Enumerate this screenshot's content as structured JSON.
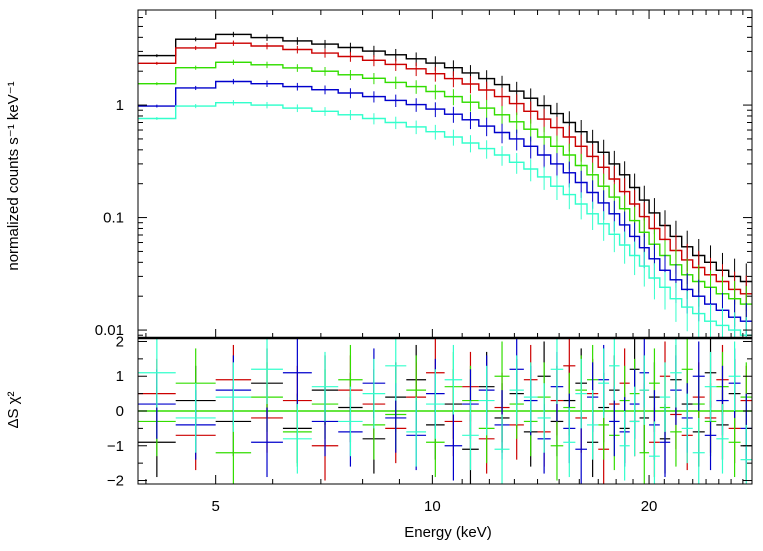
{
  "chart_data": {
    "type": "line",
    "xscale": "log",
    "xlim": [
      3.9,
      27.8
    ],
    "xlabel": "Energy (keV)",
    "xticks": [
      {
        "value": 5,
        "label": "5"
      },
      {
        "value": 10,
        "label": "10"
      },
      {
        "value": 20,
        "label": "20"
      }
    ],
    "energy_bins": [
      [
        3.9,
        4.4
      ],
      [
        4.4,
        5.0
      ],
      [
        5.0,
        5.6
      ],
      [
        5.6,
        6.2
      ],
      [
        6.2,
        6.8
      ],
      [
        6.8,
        7.4
      ],
      [
        7.4,
        8.0
      ],
      [
        8.0,
        8.6
      ],
      [
        8.6,
        9.2
      ],
      [
        9.2,
        9.8
      ],
      [
        9.8,
        10.4
      ],
      [
        10.4,
        11.0
      ],
      [
        11.0,
        11.6
      ],
      [
        11.6,
        12.2
      ],
      [
        12.2,
        12.8
      ],
      [
        12.8,
        13.4
      ],
      [
        13.4,
        14.0
      ],
      [
        14.0,
        14.6
      ],
      [
        14.6,
        15.2
      ],
      [
        15.2,
        15.8
      ],
      [
        15.8,
        16.4
      ],
      [
        16.4,
        17.0
      ],
      [
        17.0,
        17.6
      ],
      [
        17.6,
        18.2
      ],
      [
        18.2,
        18.8
      ],
      [
        18.8,
        19.4
      ],
      [
        19.4,
        20.0
      ],
      [
        20.0,
        20.7
      ],
      [
        20.7,
        21.4
      ],
      [
        21.4,
        22.2
      ],
      [
        22.2,
        23.0
      ],
      [
        23.0,
        23.9
      ],
      [
        23.9,
        24.8
      ],
      [
        24.8,
        25.8
      ],
      [
        25.8,
        26.8
      ],
      [
        26.8,
        27.8
      ]
    ],
    "top_panel": {
      "ylabel": "normalized counts s⁻¹ keV⁻¹",
      "yscale": "log",
      "ylim": [
        0.0085,
        7.0
      ],
      "yticks": [
        {
          "value": 0.01,
          "label": "0.01"
        },
        {
          "value": 0.1,
          "label": "0.1"
        },
        {
          "value": 1,
          "label": "1"
        }
      ],
      "series": [
        {
          "name": "black",
          "color": "#000000",
          "values": [
            2.75,
            3.85,
            4.25,
            3.98,
            3.72,
            3.48,
            3.25,
            3.02,
            2.8,
            2.58,
            2.36,
            2.15,
            1.93,
            1.72,
            1.52,
            1.33,
            1.15,
            0.99,
            0.84,
            0.7,
            0.58,
            0.47,
            0.38,
            0.3,
            0.24,
            0.185,
            0.143,
            0.11,
            0.085,
            0.068,
            0.055,
            0.046,
            0.04,
            0.034,
            0.03,
            0.027
          ]
        },
        {
          "name": "red",
          "color": "#cc0000",
          "values": [
            2.35,
            3.22,
            3.55,
            3.35,
            3.12,
            2.9,
            2.7,
            2.5,
            2.3,
            2.1,
            1.9,
            1.72,
            1.54,
            1.36,
            1.19,
            1.03,
            0.88,
            0.75,
            0.63,
            0.52,
            0.43,
            0.35,
            0.28,
            0.22,
            0.17,
            0.132,
            0.102,
            0.08,
            0.064,
            0.051,
            0.042,
            0.036,
            0.031,
            0.027,
            0.023,
            0.021
          ]
        },
        {
          "name": "green",
          "color": "#33dd00",
          "values": [
            1.55,
            2.15,
            2.4,
            2.28,
            2.14,
            2.0,
            1.86,
            1.73,
            1.59,
            1.46,
            1.32,
            1.19,
            1.06,
            0.94,
            0.82,
            0.71,
            0.61,
            0.52,
            0.43,
            0.36,
            0.29,
            0.24,
            0.19,
            0.152,
            0.12,
            0.094,
            0.074,
            0.058,
            0.046,
            0.038,
            0.031,
            0.027,
            0.024,
            0.021,
            0.019,
            0.017
          ]
        },
        {
          "name": "blue",
          "color": "#0000cc",
          "values": [
            0.98,
            1.42,
            1.62,
            1.55,
            1.46,
            1.37,
            1.28,
            1.19,
            1.1,
            1.01,
            0.92,
            0.83,
            0.74,
            0.65,
            0.57,
            0.5,
            0.43,
            0.36,
            0.3,
            0.25,
            0.205,
            0.167,
            0.135,
            0.108,
            0.086,
            0.068,
            0.054,
            0.043,
            0.034,
            0.028,
            0.023,
            0.02,
            0.017,
            0.015,
            0.013,
            0.012
          ]
        },
        {
          "name": "cyan",
          "color": "#33ffcc",
          "values": [
            0.76,
            0.98,
            1.05,
            1.0,
            0.94,
            0.88,
            0.82,
            0.76,
            0.7,
            0.64,
            0.58,
            0.52,
            0.46,
            0.41,
            0.36,
            0.31,
            0.27,
            0.23,
            0.19,
            0.16,
            0.132,
            0.108,
            0.088,
            0.071,
            0.057,
            0.046,
            0.037,
            0.029,
            0.024,
            0.019,
            0.016,
            0.014,
            0.012,
            0.011,
            0.01,
            0.009
          ]
        }
      ]
    },
    "bottom_panel": {
      "ylabel": "ΔS χ²",
      "ylim": [
        -2.1,
        2.1
      ],
      "yticks": [
        {
          "value": 2,
          "label": "2"
        },
        {
          "value": 1,
          "label": "1"
        },
        {
          "value": 0,
          "label": "0"
        },
        {
          "value": -1,
          "label": "−1"
        },
        {
          "value": -2,
          "label": "−2"
        }
      ],
      "zero_line_color": "#33dd00",
      "residuals": [
        {
          "name": "black",
          "color": "#000000",
          "error": 1,
          "values": [
            -0.9,
            0.3,
            -0.3,
            0.8,
            -0.5,
            0.6,
            0.1,
            -0.8,
            0.4,
            0.9,
            -0.4,
            0.2,
            -1.1,
            0.7,
            -0.2,
            0.5,
            -0.6,
            1.0,
            -0.3,
            0.3,
            0.8,
            -0.9,
            0.1,
            0.6,
            -0.5,
            1.2,
            -0.2,
            0.4,
            -0.8,
            0.9,
            0.2,
            -0.6,
            1.1,
            -0.4,
            0.5,
            -1.0
          ]
        },
        {
          "name": "red",
          "color": "#cc0000",
          "error": 1,
          "values": [
            0.5,
            -0.7,
            0.9,
            -0.2,
            0.3,
            -1.0,
            0.6,
            0.2,
            -0.5,
            0.4,
            1.1,
            -0.3,
            0.7,
            -0.8,
            0.1,
            -0.4,
            0.9,
            -0.6,
            0.3,
            1.3,
            -0.2,
            0.5,
            -1.1,
            0.2,
            0.8,
            -0.3,
            0.6,
            -0.9,
            1.0,
            -0.1,
            -0.7,
            0.4,
            -0.2,
            0.9,
            -0.5,
            0.3
          ]
        },
        {
          "name": "green",
          "color": "#33dd00",
          "error": 1,
          "values": [
            -0.3,
            0.8,
            -1.2,
            0.4,
            -0.6,
            0.2,
            0.9,
            -0.4,
            -0.1,
            0.6,
            -0.9,
            0.7,
            0.3,
            -0.5,
            1.0,
            0.2,
            -0.3,
            0.4,
            -1.0,
            0.1,
            0.6,
            0.9,
            -0.4,
            -0.7,
            0.3,
            0.5,
            -1.2,
            0.8,
            0.1,
            -0.6,
            1.2,
            0.2,
            -0.3,
            0.7,
            -0.9,
            0.4
          ]
        },
        {
          "name": "blue",
          "color": "#0000cc",
          "error": 1,
          "values": [
            0.2,
            -0.4,
            0.6,
            -0.9,
            1.1,
            -0.3,
            -0.6,
            0.8,
            -0.2,
            -0.7,
            0.5,
            -1.0,
            0.2,
            0.6,
            -0.4,
            1.2,
            0.3,
            -0.8,
            0.7,
            -0.5,
            -1.1,
            0.4,
            0.9,
            -0.3,
            -0.6,
            0.2,
            1.1,
            -0.4,
            -0.9,
            0.6,
            -0.2,
            1.0,
            -0.7,
            0.3,
            0.8,
            -0.5
          ]
        },
        {
          "name": "cyan",
          "color": "#33ffcc",
          "error": 1,
          "values": [
            1.1,
            -0.2,
            0.4,
            1.2,
            -0.8,
            0.7,
            -0.3,
            0.5,
            1.3,
            -0.6,
            0.2,
            0.9,
            -0.7,
            0.3,
            -1.1,
            0.6,
            0.4,
            -0.2,
            1.2,
            -0.9,
            0.5,
            -0.4,
            0.8,
            1.3,
            -1.0,
            -0.3,
            0.6,
            -1.3,
            0.4,
            1.1,
            -0.5,
            -1.2,
            0.7,
            -0.8,
            1.0,
            -1.4
          ]
        }
      ]
    }
  }
}
